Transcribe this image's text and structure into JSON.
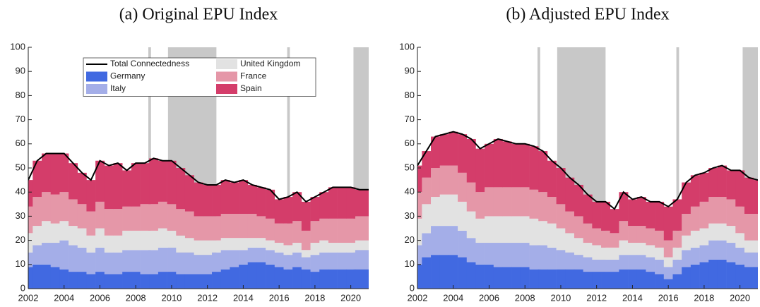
{
  "chart_data": [
    {
      "type": "bar",
      "title": "(a) Original EPU Index",
      "legend": true,
      "x": [
        2002,
        2002.5,
        2003,
        2003.5,
        2004,
        2004.5,
        2005,
        2005.5,
        2006,
        2006.5,
        2007,
        2007.5,
        2008,
        2008.5,
        2009,
        2009.5,
        2010,
        2010.5,
        2011,
        2011.5,
        2012,
        2012.5,
        2013,
        2013.5,
        2014,
        2014.5,
        2015,
        2015.5,
        2016,
        2016.5,
        2017,
        2017.5,
        2018,
        2018.5,
        2019,
        2019.5,
        2020,
        2020.5,
        2021
      ],
      "xlim": [
        2002,
        2021
      ],
      "xticks": [
        2002,
        2004,
        2006,
        2008,
        2010,
        2012,
        2014,
        2016,
        2018,
        2020
      ],
      "ylim": [
        0,
        100
      ],
      "yticks": [
        0,
        10,
        20,
        30,
        40,
        50,
        60,
        70,
        80,
        90,
        100
      ],
      "shaded": [
        [
          2008.7,
          2008.85
        ],
        [
          2009.8,
          2012.5
        ],
        [
          2016.45,
          2016.6
        ],
        [
          2020.15,
          2021
        ]
      ],
      "shade_color": "#c8c8c8",
      "series": [
        {
          "name": "Total Connectedness",
          "style": "line",
          "color": "#000000",
          "values": [
            45,
            53,
            56,
            56,
            56,
            52,
            48,
            45,
            53,
            51,
            52,
            49,
            52,
            52,
            54,
            53,
            53,
            50,
            47,
            44,
            43,
            43,
            45,
            44,
            45,
            43,
            42,
            41,
            37,
            38,
            40,
            36,
            38,
            40,
            42,
            42,
            42,
            41,
            41
          ]
        },
        {
          "name": "Germany",
          "style": "stack",
          "color": "#4169e1",
          "values": [
            9,
            10,
            10,
            9,
            8,
            7,
            7,
            6,
            7,
            6,
            6,
            7,
            7,
            6,
            6,
            7,
            7,
            6,
            6,
            6,
            6,
            7,
            8,
            9,
            10,
            11,
            11,
            10,
            9,
            8,
            9,
            8,
            7,
            8,
            8,
            8,
            8,
            8,
            8
          ]
        },
        {
          "name": "Italy",
          "style": "stack",
          "color": "#a4aee8",
          "values": [
            6,
            8,
            9,
            10,
            12,
            11,
            10,
            9,
            10,
            9,
            9,
            9,
            9,
            10,
            10,
            10,
            10,
            9,
            9,
            8,
            8,
            8,
            8,
            7,
            6,
            6,
            6,
            6,
            6,
            6,
            6,
            5,
            7,
            7,
            7,
            7,
            7,
            8,
            8
          ]
        },
        {
          "name": "United Kingdom",
          "style": "stack",
          "color": "#e2e2e2",
          "values": [
            8,
            8,
            9,
            8,
            8,
            8,
            8,
            7,
            8,
            7,
            7,
            8,
            8,
            8,
            8,
            8,
            7,
            7,
            6,
            6,
            6,
            5,
            5,
            5,
            5,
            4,
            4,
            4,
            4,
            4,
            4,
            3,
            5,
            5,
            4,
            4,
            4,
            4,
            4
          ]
        },
        {
          "name": "France",
          "style": "stack",
          "color": "#e597a8",
          "values": [
            11,
            12,
            12,
            12,
            12,
            11,
            10,
            10,
            11,
            11,
            11,
            10,
            10,
            11,
            11,
            11,
            11,
            11,
            11,
            10,
            10,
            10,
            10,
            10,
            10,
            10,
            9,
            9,
            8,
            9,
            9,
            8,
            9,
            9,
            10,
            10,
            10,
            10,
            10
          ]
        },
        {
          "name": "Spain",
          "style": "stack",
          "color": "#d43d6a",
          "values": [
            11,
            15,
            16,
            17,
            16,
            15,
            13,
            13,
            17,
            18,
            19,
            15,
            18,
            17,
            19,
            17,
            18,
            17,
            15,
            14,
            13,
            13,
            14,
            13,
            14,
            12,
            12,
            12,
            10,
            11,
            12,
            12,
            10,
            11,
            13,
            13,
            13,
            11,
            11
          ]
        }
      ]
    },
    {
      "type": "bar",
      "title": "(b) Adjusted EPU Index",
      "legend": false,
      "x": [
        2002,
        2002.5,
        2003,
        2003.5,
        2004,
        2004.5,
        2005,
        2005.5,
        2006,
        2006.5,
        2007,
        2007.5,
        2008,
        2008.5,
        2009,
        2009.5,
        2010,
        2010.5,
        2011,
        2011.5,
        2012,
        2012.5,
        2013,
        2013.5,
        2014,
        2014.5,
        2015,
        2015.5,
        2016,
        2016.5,
        2017,
        2017.5,
        2018,
        2018.5,
        2019,
        2019.5,
        2020,
        2020.5,
        2021
      ],
      "xlim": [
        2002,
        2021
      ],
      "xticks": [
        2002,
        2004,
        2006,
        2008,
        2010,
        2012,
        2014,
        2016,
        2018,
        2020
      ],
      "ylim": [
        0,
        100
      ],
      "yticks": [
        0,
        10,
        20,
        30,
        40,
        50,
        60,
        70,
        80,
        90,
        100
      ],
      "shaded": [
        [
          2008.7,
          2008.85
        ],
        [
          2009.8,
          2012.5
        ],
        [
          2016.45,
          2016.6
        ],
        [
          2020.15,
          2021
        ]
      ],
      "shade_color": "#c8c8c8",
      "series": [
        {
          "name": "Total Connectedness",
          "style": "line",
          "color": "#000000",
          "values": [
            51,
            57,
            63,
            64,
            65,
            64,
            62,
            58,
            60,
            62,
            61,
            60,
            60,
            59,
            57,
            53,
            50,
            46,
            43,
            39,
            36,
            36,
            33,
            40,
            37,
            38,
            36,
            36,
            34,
            37,
            44,
            47,
            48,
            50,
            51,
            49,
            49,
            46,
            45
          ]
        },
        {
          "name": "Germany",
          "style": "stack",
          "color": "#4169e1",
          "values": [
            10,
            13,
            14,
            14,
            14,
            13,
            11,
            10,
            10,
            9,
            9,
            9,
            9,
            8,
            8,
            8,
            8,
            8,
            8,
            7,
            7,
            7,
            7,
            8,
            8,
            8,
            7,
            6,
            4,
            6,
            9,
            10,
            11,
            12,
            12,
            11,
            10,
            9,
            9
          ]
        },
        {
          "name": "Italy",
          "style": "stack",
          "color": "#a4aee8",
          "values": [
            8,
            10,
            12,
            12,
            12,
            11,
            10,
            9,
            9,
            10,
            10,
            10,
            10,
            10,
            10,
            9,
            8,
            7,
            6,
            6,
            5,
            5,
            5,
            6,
            6,
            6,
            6,
            6,
            5,
            6,
            7,
            7,
            7,
            8,
            8,
            8,
            7,
            6,
            6
          ]
        },
        {
          "name": "United Kingdom",
          "style": "stack",
          "color": "#e2e2e2",
          "values": [
            11,
            12,
            12,
            13,
            13,
            12,
            11,
            10,
            11,
            11,
            11,
            11,
            11,
            11,
            10,
            10,
            9,
            8,
            7,
            6,
            6,
            5,
            5,
            6,
            5,
            5,
            5,
            5,
            4,
            5,
            6,
            7,
            7,
            7,
            7,
            7,
            6,
            5,
            5
          ]
        },
        {
          "name": "France",
          "style": "stack",
          "color": "#e597a8",
          "values": [
            11,
            11,
            12,
            12,
            12,
            12,
            12,
            11,
            12,
            12,
            12,
            12,
            12,
            12,
            12,
            11,
            10,
            9,
            9,
            8,
            7,
            7,
            6,
            8,
            7,
            7,
            7,
            7,
            7,
            7,
            9,
            10,
            11,
            11,
            11,
            11,
            11,
            11,
            11
          ]
        },
        {
          "name": "Spain",
          "style": "stack",
          "color": "#d43d6a",
          "values": [
            11,
            11,
            13,
            13,
            14,
            16,
            18,
            18,
            18,
            20,
            19,
            18,
            18,
            18,
            17,
            15,
            15,
            14,
            13,
            12,
            11,
            12,
            10,
            12,
            11,
            12,
            11,
            12,
            14,
            13,
            13,
            13,
            12,
            12,
            13,
            12,
            15,
            15,
            14
          ]
        }
      ]
    }
  ]
}
